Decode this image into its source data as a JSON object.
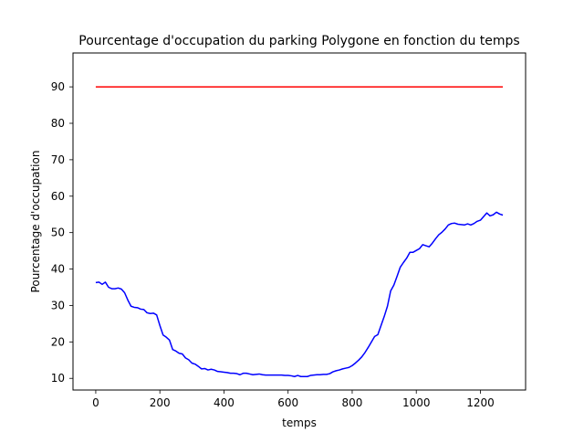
{
  "chart_data": {
    "type": "line",
    "title": "Pourcentage d'occupation du parking Polygone en fonction du temps",
    "xlabel": "temps",
    "ylabel": "Pourcentage d'occupation",
    "xlim": [
      -71,
      1341
    ],
    "ylim": [
      6.8,
      99.3
    ],
    "xticks": [
      0,
      200,
      400,
      600,
      800,
      1000,
      1200
    ],
    "yticks": [
      10,
      20,
      30,
      40,
      50,
      60,
      70,
      80,
      90
    ],
    "grid": false,
    "legend": "none",
    "series": [
      {
        "color": "#0000ff",
        "x": [
          0,
          10,
          20,
          30,
          40,
          50,
          60,
          70,
          80,
          90,
          100,
          110,
          120,
          130,
          140,
          150,
          160,
          170,
          180,
          190,
          200,
          210,
          220,
          230,
          240,
          250,
          260,
          270,
          280,
          290,
          300,
          310,
          320,
          330,
          340,
          350,
          360,
          370,
          380,
          390,
          400,
          410,
          420,
          430,
          440,
          450,
          460,
          470,
          480,
          490,
          500,
          510,
          520,
          530,
          540,
          550,
          560,
          570,
          580,
          590,
          600,
          610,
          620,
          630,
          640,
          650,
          660,
          670,
          680,
          690,
          700,
          710,
          720,
          730,
          740,
          750,
          760,
          770,
          780,
          790,
          800,
          810,
          820,
          830,
          840,
          850,
          860,
          870,
          880,
          890,
          900,
          910,
          920,
          930,
          940,
          950,
          960,
          970,
          980,
          990,
          1000,
          1010,
          1020,
          1030,
          1040,
          1050,
          1060,
          1070,
          1080,
          1090,
          1100,
          1110,
          1120,
          1130,
          1140,
          1150,
          1160,
          1170,
          1180,
          1190,
          1200,
          1210,
          1220,
          1230,
          1240,
          1250,
          1260,
          1270
        ],
        "y": [
          36.3,
          36.4,
          35.8,
          36.4,
          35.0,
          34.6,
          34.6,
          34.8,
          34.5,
          33.5,
          31.5,
          29.8,
          29.5,
          29.4,
          29.0,
          28.9,
          28.0,
          27.8,
          27.9,
          27.4,
          24.5,
          21.9,
          21.3,
          20.5,
          17.9,
          17.5,
          16.9,
          16.7,
          15.6,
          15.1,
          14.2,
          13.9,
          13.3,
          12.6,
          12.7,
          12.3,
          12.5,
          12.3,
          11.9,
          11.8,
          11.7,
          11.6,
          11.4,
          11.4,
          11.3,
          11.0,
          11.4,
          11.4,
          11.2,
          11.0,
          11.1,
          11.2,
          11.0,
          10.9,
          10.9,
          10.9,
          10.9,
          10.9,
          10.9,
          10.8,
          10.8,
          10.7,
          10.5,
          10.8,
          10.5,
          10.5,
          10.5,
          10.8,
          10.9,
          11.0,
          11.0,
          11.1,
          11.1,
          11.3,
          11.8,
          12.1,
          12.3,
          12.6,
          12.8,
          13.0,
          13.5,
          14.2,
          15.0,
          15.9,
          17.1,
          18.5,
          20.0,
          21.5,
          22.0,
          24.5,
          27.0,
          29.8,
          34.0,
          35.6,
          38.0,
          40.5,
          41.8,
          43.0,
          44.6,
          44.6,
          45.1,
          45.6,
          46.7,
          46.4,
          46.1,
          47.1,
          48.3,
          49.4,
          50.1,
          51.0,
          52.1,
          52.5,
          52.6,
          52.3,
          52.2,
          52.1,
          52.4,
          52.1,
          52.5,
          53.1,
          53.4,
          54.4,
          55.4,
          54.6,
          54.9,
          55.6,
          55.1,
          54.8
        ]
      },
      {
        "color": "#ff0000",
        "x": [
          0,
          1270
        ],
        "y": [
          90,
          90
        ]
      }
    ]
  }
}
